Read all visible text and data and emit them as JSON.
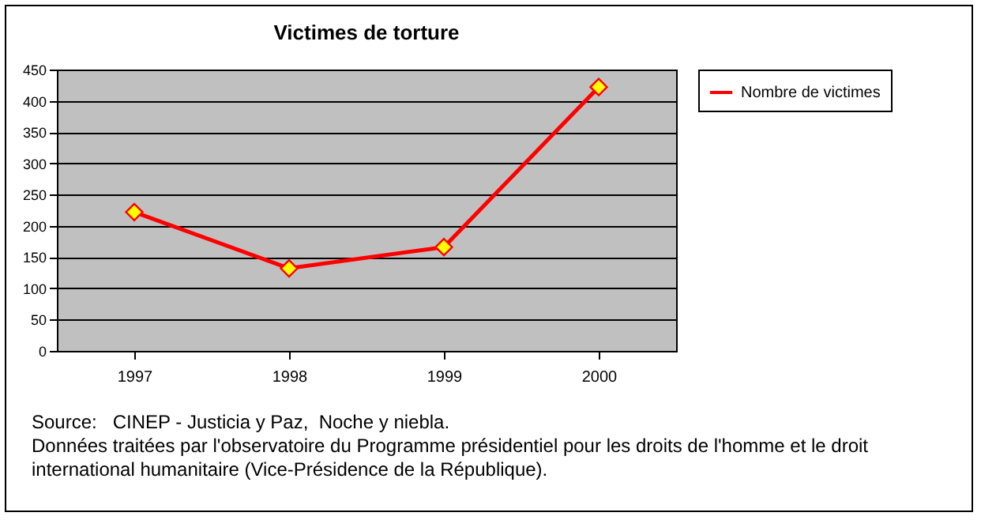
{
  "chart_data": {
    "type": "line",
    "title": "Victimes de torture",
    "categories": [
      "1997",
      "1998",
      "1999",
      "2000"
    ],
    "series": [
      {
        "name": "Nombre de victimes",
        "color": "#ff0000",
        "values": [
          222,
          132,
          166,
          422
        ]
      }
    ],
    "ylim": [
      0,
      450
    ],
    "yticks": [
      0,
      50,
      100,
      150,
      200,
      250,
      300,
      350,
      400,
      450
    ],
    "grid": "y",
    "legend": "right",
    "marker": "diamond",
    "line_style": "solid",
    "annotations": [
      "Source:   CINEP - Justicia y Paz,  Noche y niebla.",
      "Données traitées par l'observatoire du Programme présidentiel pour les droits de l'homme et le droit international humanitaire (Vice-Présidence de la République)."
    ]
  }
}
